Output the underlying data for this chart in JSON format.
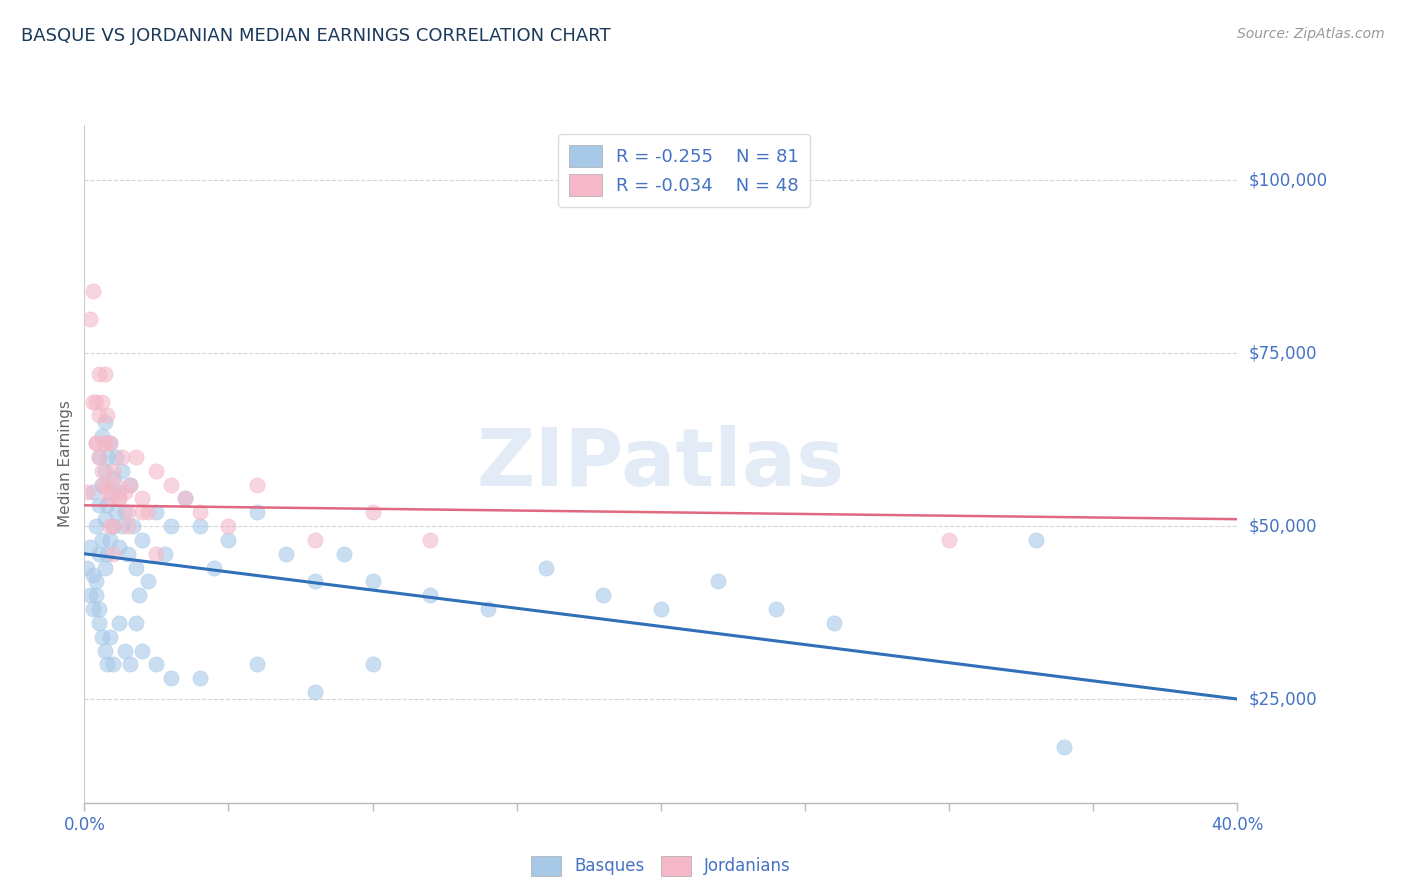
{
  "title": "BASQUE VS JORDANIAN MEDIAN EARNINGS CORRELATION CHART",
  "source": "Source: ZipAtlas.com",
  "xlabel_basques": "Basques",
  "xlabel_jordanians": "Jordanians",
  "ylabel": "Median Earnings",
  "xmin": 0.0,
  "xmax": 0.4,
  "ymin": 10000,
  "ymax": 108000,
  "yticks": [
    25000,
    50000,
    75000,
    100000
  ],
  "ytick_labels": [
    "$25,000",
    "$50,000",
    "$75,000",
    "$100,000"
  ],
  "xticks": [
    0.0,
    0.05,
    0.1,
    0.15,
    0.2,
    0.25,
    0.3,
    0.35,
    0.4
  ],
  "xtick_labels_show": [
    "0.0%",
    "",
    "",
    "",
    "",
    "",
    "",
    "",
    "40.0%"
  ],
  "color_blue": "#a8c8e8",
  "color_pink": "#f4b8c8",
  "color_blue_line": "#3070b8",
  "color_pink_line": "#e06880",
  "title_color": "#1a3a5c",
  "axis_color": "#4472c4",
  "grid_color": "#cccccc",
  "watermark": "ZIPatlas",
  "legend_R_blue": "R = -0.255",
  "legend_N_blue": "N = 81",
  "legend_R_pink": "R = -0.034",
  "legend_N_pink": "N = 48",
  "blue_scatter_x": [
    0.001,
    0.002,
    0.002,
    0.003,
    0.003,
    0.004,
    0.004,
    0.005,
    0.005,
    0.005,
    0.005,
    0.006,
    0.006,
    0.006,
    0.007,
    0.007,
    0.007,
    0.007,
    0.008,
    0.008,
    0.008,
    0.009,
    0.009,
    0.009,
    0.01,
    0.01,
    0.011,
    0.011,
    0.012,
    0.012,
    0.013,
    0.013,
    0.014,
    0.015,
    0.016,
    0.017,
    0.018,
    0.019,
    0.02,
    0.022,
    0.025,
    0.028,
    0.03,
    0.035,
    0.04,
    0.045,
    0.05,
    0.06,
    0.07,
    0.08,
    0.09,
    0.1,
    0.12,
    0.14,
    0.16,
    0.18,
    0.2,
    0.22,
    0.24,
    0.26,
    0.003,
    0.004,
    0.005,
    0.006,
    0.007,
    0.008,
    0.009,
    0.01,
    0.012,
    0.014,
    0.016,
    0.018,
    0.02,
    0.025,
    0.03,
    0.04,
    0.06,
    0.08,
    0.1,
    0.33,
    0.34
  ],
  "blue_scatter_y": [
    44000,
    47000,
    40000,
    55000,
    43000,
    50000,
    40000,
    60000,
    53000,
    46000,
    38000,
    63000,
    56000,
    48000,
    65000,
    58000,
    51000,
    44000,
    60000,
    53000,
    46000,
    62000,
    55000,
    48000,
    57000,
    50000,
    60000,
    52000,
    55000,
    47000,
    58000,
    50000,
    52000,
    46000,
    56000,
    50000,
    44000,
    40000,
    48000,
    42000,
    52000,
    46000,
    50000,
    54000,
    50000,
    44000,
    48000,
    52000,
    46000,
    42000,
    46000,
    42000,
    40000,
    38000,
    44000,
    40000,
    38000,
    42000,
    38000,
    36000,
    38000,
    42000,
    36000,
    34000,
    32000,
    30000,
    34000,
    30000,
    36000,
    32000,
    30000,
    36000,
    32000,
    30000,
    28000,
    28000,
    30000,
    26000,
    30000,
    48000,
    18000
  ],
  "pink_scatter_x": [
    0.001,
    0.002,
    0.003,
    0.004,
    0.004,
    0.005,
    0.005,
    0.006,
    0.006,
    0.007,
    0.007,
    0.008,
    0.008,
    0.009,
    0.009,
    0.01,
    0.01,
    0.011,
    0.012,
    0.013,
    0.014,
    0.015,
    0.016,
    0.018,
    0.02,
    0.022,
    0.025,
    0.03,
    0.035,
    0.04,
    0.05,
    0.06,
    0.08,
    0.1,
    0.12,
    0.003,
    0.004,
    0.005,
    0.006,
    0.007,
    0.008,
    0.009,
    0.01,
    0.012,
    0.015,
    0.02,
    0.025,
    0.3
  ],
  "pink_scatter_y": [
    55000,
    80000,
    84000,
    68000,
    62000,
    72000,
    60000,
    68000,
    56000,
    72000,
    62000,
    66000,
    56000,
    62000,
    54000,
    58000,
    50000,
    56000,
    54000,
    60000,
    55000,
    52000,
    56000,
    60000,
    54000,
    52000,
    58000,
    56000,
    54000,
    52000,
    50000,
    56000,
    48000,
    52000,
    48000,
    68000,
    62000,
    66000,
    58000,
    62000,
    55000,
    50000,
    46000,
    54000,
    50000,
    52000,
    46000,
    48000
  ],
  "blue_line_x": [
    0.0,
    0.4
  ],
  "blue_line_y": [
    46000,
    25000
  ],
  "pink_line_x": [
    0.0,
    0.4
  ],
  "pink_line_y": [
    53000,
    51000
  ],
  "background_color": "#ffffff"
}
